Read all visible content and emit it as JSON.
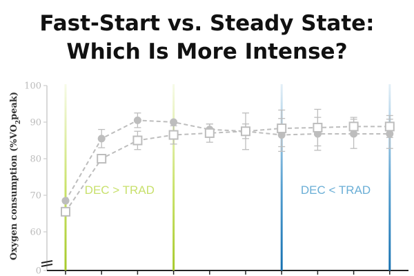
{
  "title_line1": "Fast-Start vs. Steady State:",
  "title_line2": "Which Is More Intense?",
  "chart_data": {
    "type": "line",
    "ylabel": "Oxygen consumption (%VO2peak)",
    "ylabel_parts": {
      "main": "Oxygen consumption (%VO",
      "sub": "2",
      "end": "peak)"
    },
    "ylim": [
      0,
      100
    ],
    "yticks": [
      "100",
      "90",
      "80",
      "70",
      "60",
      "0"
    ],
    "x_count": 11,
    "series": [
      {
        "marker": "filled-circle",
        "values": [
          68.5,
          85.5,
          90.5,
          90,
          88,
          87.5,
          86.5,
          86.8,
          86.8,
          86.8
        ],
        "errors": [
          null,
          2.5,
          2,
          null,
          1.5,
          2,
          4.5,
          4.5,
          4,
          4
        ]
      },
      {
        "marker": "open-square",
        "values": [
          65.5,
          80,
          85,
          86.5,
          87,
          87.5,
          88.3,
          88.5,
          88.8,
          88.8
        ],
        "errors": [
          null,
          null,
          2.5,
          2.5,
          2.5,
          5,
          5,
          5,
          2.5,
          3
        ]
      }
    ],
    "zones": [
      {
        "label": "DEC > TRAD",
        "color": "#c8e06c",
        "x_from": 0,
        "x_to": 3
      },
      {
        "label": "DEC < TRAD",
        "color": "#6aaed6",
        "x_from": 6,
        "x_to": 9
      }
    ],
    "colors": {
      "series": "#bdbdbd",
      "green_line": "#b9d93b",
      "blue_line": "#1d7fc0",
      "green_text": "#c8e06c",
      "blue_text": "#6aaed6"
    }
  }
}
